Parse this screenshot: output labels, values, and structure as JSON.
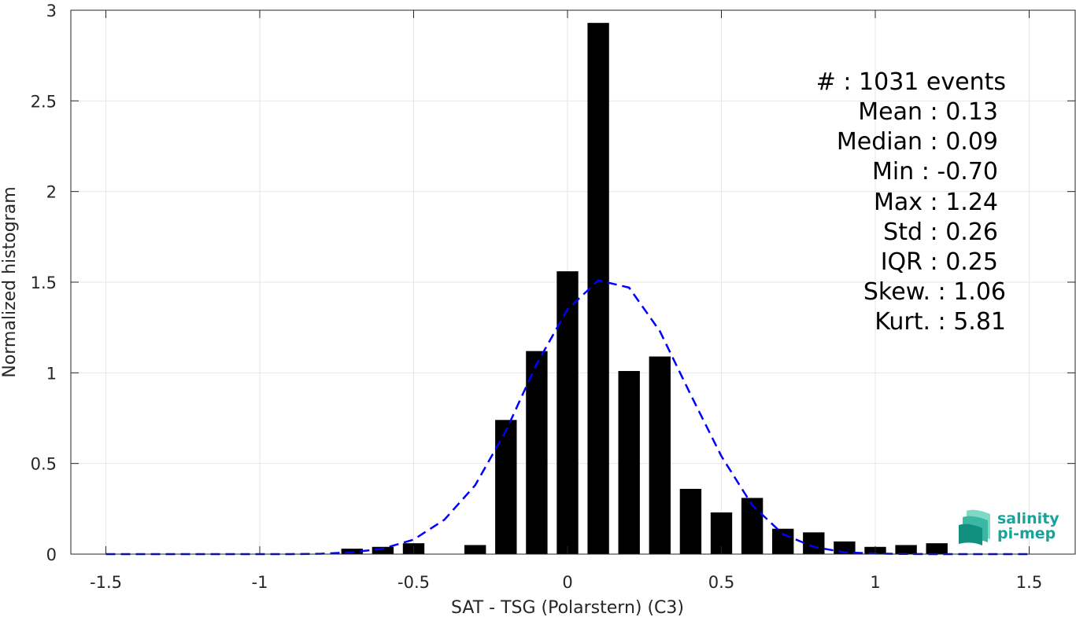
{
  "chart_data": {
    "type": "bar",
    "xlabel": "SAT - TSG (Polarstern) (C3)",
    "ylabel": "Normalized histogram",
    "xlim": [
      -1.5,
      1.5
    ],
    "ylim": [
      0,
      3
    ],
    "grid": true,
    "x_ticks": [
      "-1.5",
      "-1",
      "-0.5",
      "0",
      "0.5",
      "1",
      "1.5"
    ],
    "y_ticks": [
      "0",
      "0.5",
      "1",
      "1.5",
      "2",
      "2.5",
      "3"
    ],
    "bin_width": 0.1,
    "bars": {
      "x": [
        -0.7,
        -0.6,
        -0.5,
        -0.3,
        -0.2,
        -0.1,
        0.0,
        0.1,
        0.2,
        0.3,
        0.4,
        0.5,
        0.6,
        0.7,
        0.8,
        0.9,
        1.0,
        1.1,
        1.2
      ],
      "values": [
        0.03,
        0.04,
        0.06,
        0.05,
        0.74,
        1.12,
        1.56,
        2.93,
        1.01,
        1.09,
        0.36,
        0.23,
        0.31,
        0.14,
        0.12,
        0.07,
        0.04,
        0.05,
        0.06
      ],
      "color": "#000000"
    },
    "fit_curve": {
      "style": "dashed",
      "color": "#0000ff",
      "x": [
        -1.5,
        -1.4,
        -1.3,
        -1.2,
        -1.1,
        -1.0,
        -0.9,
        -0.8,
        -0.7,
        -0.6,
        -0.5,
        -0.4,
        -0.3,
        -0.2,
        -0.1,
        0.0,
        0.1,
        0.2,
        0.3,
        0.4,
        0.5,
        0.6,
        0.7,
        0.8,
        0.9,
        1.0,
        1.1,
        1.2,
        1.3,
        1.4,
        1.5
      ],
      "y": [
        0,
        0,
        0,
        0,
        0,
        0,
        0,
        0.002,
        0.01,
        0.03,
        0.08,
        0.19,
        0.38,
        0.68,
        1.05,
        1.35,
        1.51,
        1.47,
        1.23,
        0.88,
        0.54,
        0.27,
        0.11,
        0.04,
        0.01,
        0.003,
        0.001,
        0,
        0,
        0,
        0
      ]
    },
    "annotations": [
      "#  : 1031 events",
      "Mean : 0.13",
      "Median : 0.09",
      "Min : -0.70",
      "Max : 1.24",
      "Std : 0.26",
      "IQR : 0.25",
      "Skew. : 1.06",
      "Kurt. : 5.81"
    ]
  },
  "logo": {
    "line1": "salinity",
    "line2": "pi-mep",
    "color": "#1aa39a"
  }
}
